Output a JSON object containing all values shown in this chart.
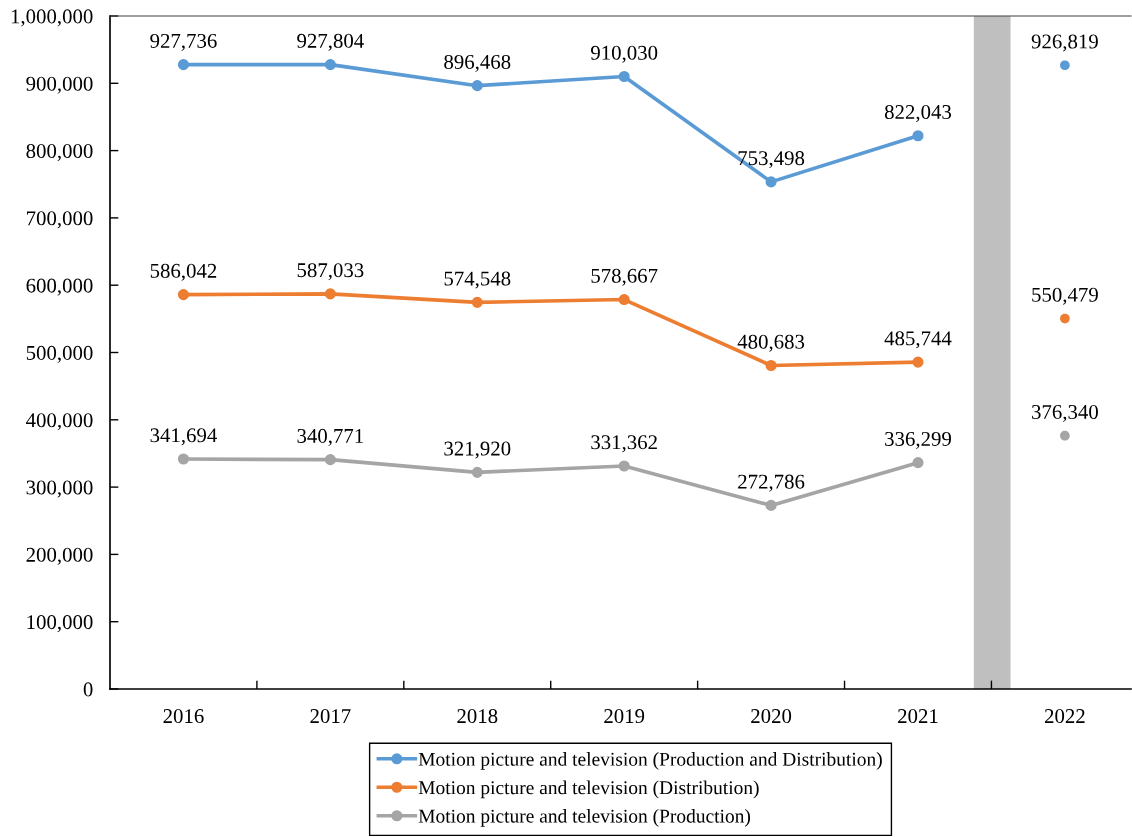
{
  "chart_data": {
    "type": "line",
    "x": [
      2016,
      2017,
      2018,
      2019,
      2020,
      2021,
      2022
    ],
    "xlim": [
      2015.5,
      2022.45
    ],
    "xticks": [
      2016,
      {
        "value": 2016.5,
        "label": null
      },
      2017,
      {
        "value": 2017.5,
        "label": null
      },
      2018,
      {
        "value": 2018.5,
        "label": null
      },
      2019,
      {
        "value": 2019.5,
        "label": null
      },
      2020,
      {
        "value": 2020.5,
        "label": null
      },
      2021,
      {
        "value": 2021.5,
        "label": null
      },
      2022
    ],
    "ylim": [
      0,
      1000000
    ],
    "yticks": [
      0,
      {
        "value": 100000,
        "label": "100,000"
      },
      {
        "value": 200000,
        "label": "200,000"
      },
      {
        "value": 300000,
        "label": "300,000"
      },
      {
        "value": 400000,
        "label": "400,000"
      },
      {
        "value": 500000,
        "label": "500,000"
      },
      {
        "value": 600000,
        "label": "600,000"
      },
      {
        "value": 700000,
        "label": "700,000"
      },
      {
        "value": 800000,
        "label": "800,000"
      },
      {
        "value": 900000,
        "label": "900,000"
      },
      {
        "value": 1000000,
        "label": "1,000,000"
      }
    ],
    "series": [
      {
        "name": "Motion picture and television (Production and Distribution)",
        "color": "#5b9bd5",
        "values": [
          927736,
          927804,
          896468,
          910030,
          753498,
          822043,
          null
        ],
        "value_labels": [
          "927,736",
          "927,804",
          "896,468",
          "910,030",
          "753,498",
          "822,043",
          null
        ]
      },
      {
        "name": "Motion picture and television (Distribution)",
        "color": "#ed7d31",
        "values": [
          586042,
          587033,
          574548,
          578667,
          480683,
          485744,
          null
        ],
        "value_labels": [
          "586,042",
          "587,033",
          "574,548",
          "578,667",
          "480,683",
          "485,744",
          null
        ]
      },
      {
        "name": "Motion picture and television (Production)",
        "color": "#a5a5a5",
        "values": [
          341694,
          340771,
          321920,
          331362,
          272786,
          336299,
          null
        ],
        "value_labels": [
          "341,694",
          "340,771",
          "321,920",
          "331,362",
          "272,786",
          "336,299",
          null
        ]
      },
      {
        "type": "scatter",
        "color": "#5b9bd5",
        "values": [
          null,
          null,
          null,
          null,
          null,
          null,
          926819
        ],
        "value_labels": [
          null,
          null,
          null,
          null,
          null,
          null,
          "926,819"
        ]
      },
      {
        "type": "scatter",
        "color": "#ed7d31",
        "values": [
          null,
          null,
          null,
          null,
          null,
          null,
          550479
        ],
        "value_labels": [
          null,
          null,
          null,
          null,
          null,
          null,
          "550,479"
        ]
      },
      {
        "type": "scatter",
        "color": "#a5a5a5",
        "values": [
          null,
          null,
          null,
          null,
          null,
          null,
          376340
        ],
        "value_labels": [
          null,
          null,
          null,
          null,
          null,
          null,
          "376,340"
        ]
      }
    ],
    "bands": [
      {
        "axis": "x",
        "from": 2021.38,
        "to": 2021.63,
        "color": "#bfbfbf"
      }
    ],
    "marker": "circle",
    "line_style": "solid",
    "grid": false,
    "legend": "bottom"
  }
}
